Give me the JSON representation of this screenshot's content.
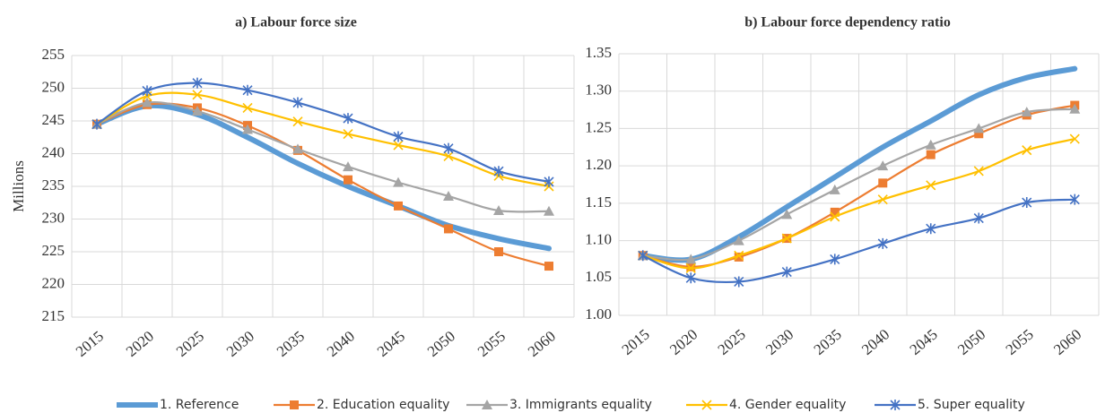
{
  "chart_data": [
    {
      "type": "line",
      "title": "a) Labour force size",
      "y_label": "Millions",
      "categories": [
        "2015",
        "2020",
        "2025",
        "2030",
        "2035",
        "2040",
        "2045",
        "2050",
        "2055",
        "2060"
      ],
      "ylim": [
        215,
        255
      ],
      "yticks": [
        215,
        220,
        225,
        230,
        235,
        240,
        245,
        250,
        255
      ],
      "grid": true,
      "series": [
        {
          "name": "1. Reference",
          "color": "#5b9bd5",
          "marker": "none",
          "values": [
            244.5,
            247.3,
            246,
            242.5,
            238.5,
            235,
            232,
            229,
            227,
            225.5
          ]
        },
        {
          "name": "2. Education equality",
          "color": "#ed7d31",
          "marker": "square",
          "values": [
            244.5,
            247.5,
            247,
            244.3,
            240.5,
            236,
            232,
            228.5,
            225,
            222.8
          ]
        },
        {
          "name": "3. Immigrants equality",
          "color": "#a5a5a5",
          "marker": "triangle",
          "values": [
            244.5,
            247.8,
            246.5,
            243.7,
            240.7,
            238,
            235.6,
            233.5,
            231.3,
            231.2
          ]
        },
        {
          "name": "4. Gender equality",
          "color": "#ffc000",
          "marker": "x",
          "values": [
            244.5,
            248.8,
            249,
            247,
            244.9,
            243,
            241.3,
            239.6,
            236.6,
            235
          ]
        },
        {
          "name": "5. Super equality",
          "color": "#4472c4",
          "marker": "star",
          "values": [
            244.5,
            249.6,
            250.8,
            249.7,
            247.8,
            245.4,
            242.6,
            240.8,
            237.3,
            235.7
          ]
        }
      ]
    },
    {
      "type": "line",
      "title": "b) Labour force dependency ratio",
      "categories": [
        "2015",
        "2020",
        "2025",
        "2030",
        "2035",
        "2040",
        "2045",
        "2050",
        "2055",
        "2060"
      ],
      "ylim": [
        1.0,
        1.35
      ],
      "yticks": [
        {
          "value": 1.0,
          "label": "1.00"
        },
        1.05,
        {
          "value": 1.1,
          "label": "1.10"
        },
        1.15,
        {
          "value": 1.2,
          "label": "1.20"
        },
        1.25,
        {
          "value": 1.3,
          "label": "1.30"
        },
        1.35
      ],
      "grid": true,
      "series": [
        {
          "color": "#5b9bd5",
          "marker": "none",
          "values": [
            1.08,
            1.075,
            1.105,
            1.145,
            1.185,
            1.225,
            1.26,
            1.295,
            1.318,
            1.33
          ]
        },
        {
          "color": "#ed7d31",
          "marker": "square",
          "values": [
            1.08,
            1.065,
            1.078,
            1.103,
            1.138,
            1.177,
            1.215,
            1.243,
            1.268,
            1.281
          ]
        },
        {
          "color": "#a5a5a5",
          "marker": "triangle",
          "values": [
            1.08,
            1.075,
            1.1,
            1.135,
            1.168,
            1.2,
            1.228,
            1.25,
            1.272,
            1.276
          ]
        },
        {
          "color": "#ffc000",
          "marker": "x",
          "values": [
            1.08,
            1.063,
            1.08,
            1.103,
            1.132,
            1.155,
            1.174,
            1.193,
            1.221,
            1.236
          ]
        },
        {
          "color": "#4472c4",
          "marker": "star",
          "values": [
            1.08,
            1.05,
            1.045,
            1.058,
            1.075,
            1.096,
            1.116,
            1.13,
            1.151,
            1.155
          ]
        }
      ]
    }
  ]
}
